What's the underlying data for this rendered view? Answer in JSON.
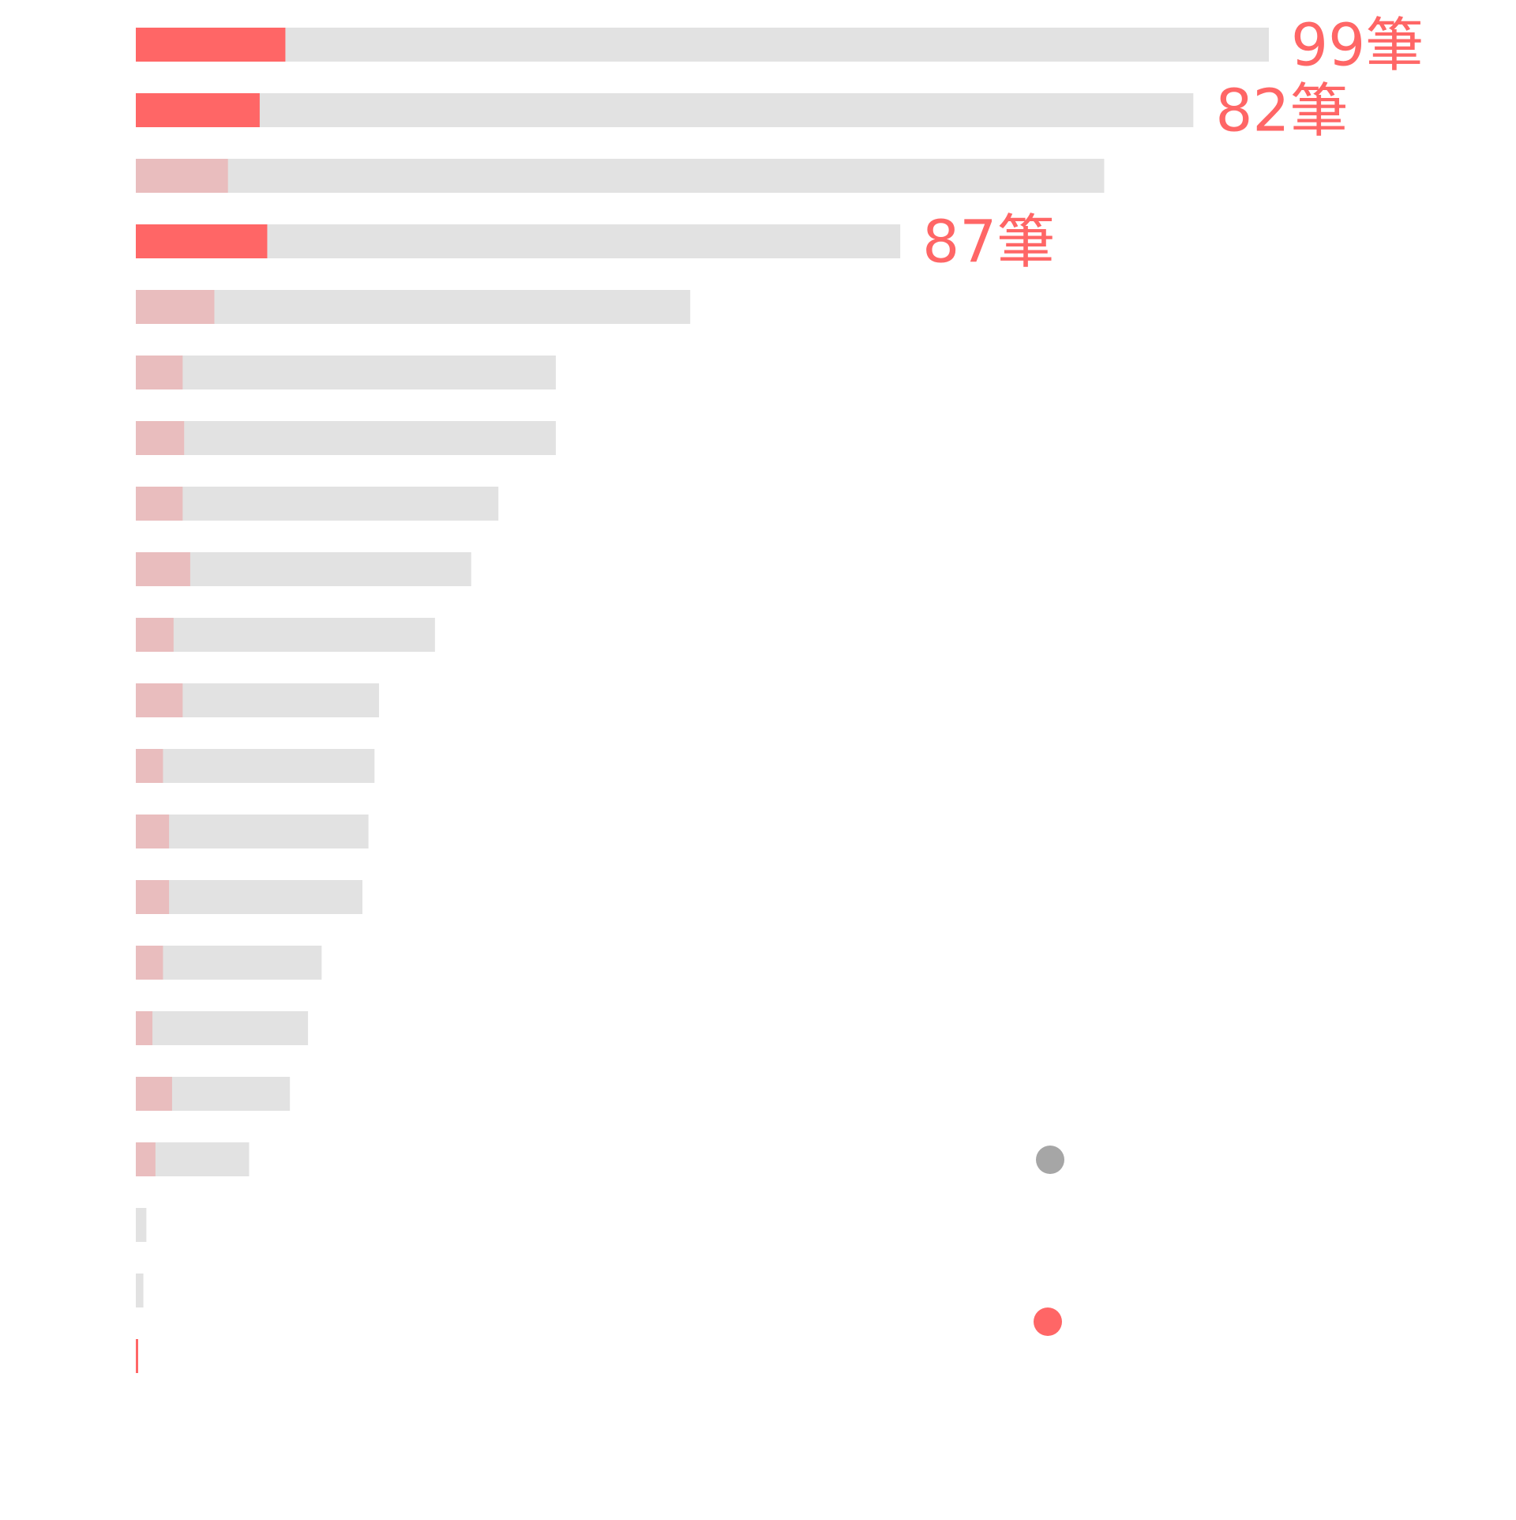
{
  "chart_data": {
    "type": "bar",
    "orientation": "horizontal",
    "stacked_overlay": true,
    "categories": [
      "",
      "",
      "",
      "",
      "",
      "",
      "",
      "",
      "",
      "",
      "",
      "",
      "",
      "",
      "",
      "",
      "",
      "",
      "",
      "",
      ""
    ],
    "series": [
      {
        "role": "total",
        "color": "#e2e2e2",
        "values": [
          750,
          700,
          641,
          506,
          367,
          278,
          278,
          240,
          222,
          198,
          161,
          158,
          154,
          150,
          123,
          114,
          102,
          75,
          7,
          5,
          1
        ]
      },
      {
        "role": "highlight",
        "color": "#e9bdbe",
        "highlight_color": "#ff6666",
        "highlighted_rows": [
          0,
          1,
          3,
          20
        ],
        "values": [
          99,
          82,
          61,
          87,
          52,
          31,
          32,
          31,
          36,
          25,
          31,
          18,
          22,
          22,
          18,
          11,
          24,
          13,
          0,
          0,
          1
        ]
      }
    ],
    "data_labels": [
      {
        "row": 0,
        "text": "99筆"
      },
      {
        "row": 1,
        "text": "82筆"
      },
      {
        "row": 3,
        "text": "87筆"
      }
    ],
    "title": "",
    "xlabel": "",
    "ylabel": "",
    "xlim": [
      0,
      750
    ],
    "grid": false,
    "legend": {
      "placement": "bottom-right",
      "entries": [
        {
          "color": "#a6a6a6",
          "name": ""
        },
        {
          "color": "#ff6666",
          "name": ""
        }
      ]
    }
  }
}
